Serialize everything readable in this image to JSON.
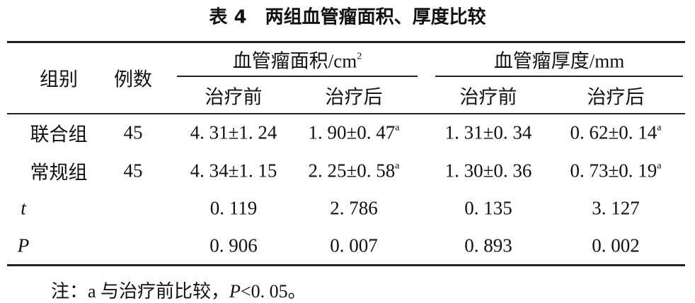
{
  "title": "表 4　两组血管瘤面积、厚度比较",
  "header": {
    "group": "组别",
    "count": "例数",
    "area": {
      "text": "血管瘤面积/cm",
      "sup": "2"
    },
    "thickness": "血管瘤厚度/mm",
    "sub": [
      "治疗前",
      "治疗后",
      "治疗前",
      "治疗后"
    ]
  },
  "rows": [
    {
      "label": "联合组",
      "count": "45",
      "cells": [
        {
          "text": "4. 31±1. 24"
        },
        {
          "text": "1. 90±0. 47",
          "sup": "a"
        },
        {
          "text": "1. 31±0. 34"
        },
        {
          "text": "0. 62±0. 14",
          "sup": "a"
        }
      ]
    },
    {
      "label": "常规组",
      "count": "45",
      "cells": [
        {
          "text": "4. 34±1. 15"
        },
        {
          "text": "2. 25±0. 58",
          "sup": "a"
        },
        {
          "text": "1. 30±0. 36"
        },
        {
          "text": "0. 73±0. 19",
          "sup": "a"
        }
      ]
    },
    {
      "label": "t",
      "italic": true,
      "cells": [
        {
          "text": "0. 119"
        },
        {
          "text": "2. 786"
        },
        {
          "text": "0. 135"
        },
        {
          "text": "3. 127"
        }
      ]
    },
    {
      "label": "P",
      "italic": true,
      "cells": [
        {
          "text": "0. 906"
        },
        {
          "text": "0. 007"
        },
        {
          "text": "0. 893"
        },
        {
          "text": "0. 002"
        }
      ]
    }
  ],
  "note": [
    {
      "text": "注：a 与治疗前比较，"
    },
    {
      "text": "P",
      "italic": true
    },
    {
      "text": "<0. 05。"
    }
  ]
}
